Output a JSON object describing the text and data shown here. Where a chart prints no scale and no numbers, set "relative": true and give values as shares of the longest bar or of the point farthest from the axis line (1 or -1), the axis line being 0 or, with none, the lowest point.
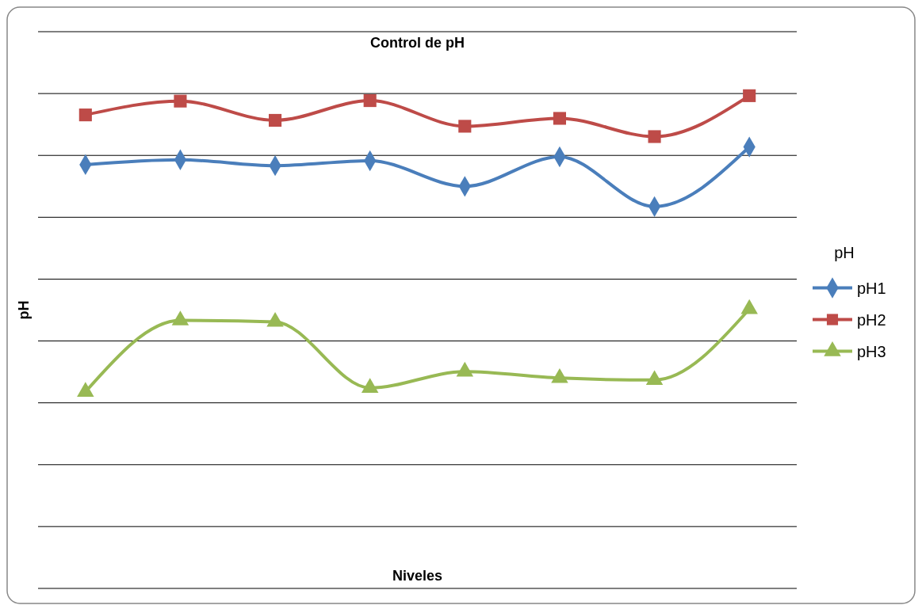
{
  "chart_data": {
    "type": "line",
    "title": "Control de pH",
    "xlabel": "Niveles",
    "ylabel": "pH",
    "legend_title": "pH",
    "relative": true,
    "grid": true,
    "legend": "right",
    "categories": [
      null,
      null,
      null,
      null,
      null,
      null,
      null,
      null
    ],
    "series": [
      {
        "name": "pH1",
        "color": "#4a7ebb",
        "marker": "diamond",
        "values": [
          0.86,
          0.87,
          0.858,
          0.868,
          0.816,
          0.876,
          0.775,
          0.896
        ]
      },
      {
        "name": "pH2",
        "color": "#be4b48",
        "marker": "square",
        "values": [
          0.961,
          0.989,
          0.95,
          0.99,
          0.938,
          0.954,
          0.917,
          1
        ]
      },
      {
        "name": "pH3",
        "color": "#98b954",
        "marker": "triangle",
        "values": [
          0.399,
          0.544,
          0.541,
          0.407,
          0.44,
          0.427,
          0.423,
          0.567
        ]
      }
    ]
  }
}
